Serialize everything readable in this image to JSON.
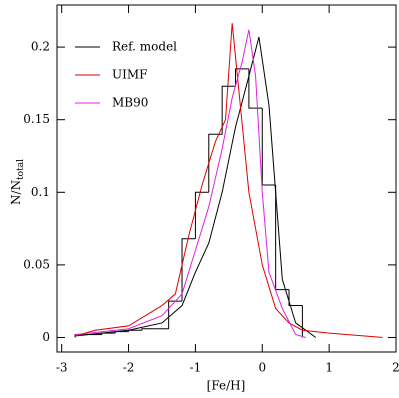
{
  "chart_data": {
    "type": "histogram",
    "xlabel": "[Fe/H]",
    "ylabel": "N/N",
    "ylabel_subscript": "total",
    "xlim": [
      -3.07,
      2
    ],
    "ylim": [
      -0.01,
      0.229
    ],
    "xticks": [
      -3,
      -2,
      -1,
      0,
      1,
      2
    ],
    "yticks": [
      0,
      0.05,
      0.1,
      0.15,
      0.2
    ],
    "color": "#000000",
    "bins": [
      -2.8,
      -2.6,
      -2.4,
      -2.2,
      -2.0,
      -1.8,
      -1.6,
      -1.4,
      -1.2,
      -1.0,
      -0.8,
      -0.6,
      -0.4,
      -0.2,
      0,
      0.2,
      0.4,
      0.6
    ],
    "counts": [
      0.002,
      0.002,
      0.003,
      0.004,
      0.005,
      0.006,
      0.006,
      0.025,
      0.068,
      0.1,
      0.14,
      0.173,
      0.185,
      0.158,
      0.105,
      0.033,
      0.022
    ],
    "series": [
      {
        "name": "Ref. model",
        "color": "#000000",
        "x": [
          -2.8,
          -2.0,
          -1.5,
          -1.2,
          -1.0,
          -0.8,
          -0.6,
          -0.4,
          -0.2,
          -0.05,
          0.1,
          0.2,
          0.3,
          0.5,
          0.8
        ],
        "values": [
          0.001,
          0.005,
          0.01,
          0.022,
          0.045,
          0.065,
          0.1,
          0.145,
          0.18,
          0.207,
          0.16,
          0.1,
          0.04,
          0.01,
          0
        ]
      },
      {
        "name": "UIMF",
        "color": "#e00000",
        "x": [
          -2.8,
          -2.5,
          -2.0,
          -1.5,
          -1.3,
          -1.1,
          -0.9,
          -0.7,
          -0.55,
          -0.45,
          -0.35,
          -0.2,
          0,
          0.2,
          0.4,
          0.6,
          1.0,
          1.8
        ],
        "values": [
          0.001,
          0.005,
          0.008,
          0.022,
          0.03,
          0.07,
          0.105,
          0.135,
          0.15,
          0.2165,
          0.17,
          0.1,
          0.05,
          0.02,
          0.01,
          0.005,
          0.003,
          0
        ]
      },
      {
        "name": "MB90",
        "color": "#e020e0",
        "x": [
          -2.8,
          -2.0,
          -1.5,
          -1.2,
          -1.0,
          -0.8,
          -0.6,
          -0.45,
          -0.3,
          -0.2,
          -0.1,
          0,
          0.1,
          0.3,
          0.5,
          0.65
        ],
        "values": [
          0.002,
          0.006,
          0.015,
          0.03,
          0.06,
          0.09,
          0.13,
          0.165,
          0.19,
          0.212,
          0.18,
          0.1,
          0.045,
          0.02,
          0.002,
          0
        ]
      }
    ]
  }
}
